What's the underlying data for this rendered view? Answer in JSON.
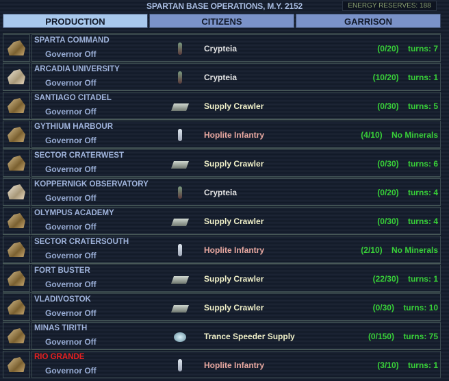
{
  "header": {
    "title": "SPARTAN BASE OPERATIONS,  M.Y. 2152",
    "energy": "ENERGY RESERVES: 188"
  },
  "tabs": [
    {
      "label": "PRODUCTION",
      "active": true
    },
    {
      "label": "CITIZENS"
    },
    {
      "label": "GARRISON"
    }
  ],
  "bases": [
    {
      "name": "SPARTA COMMAND",
      "governor": "Governor Off",
      "unit_icon": "foot-soldier",
      "item": "Crypteia",
      "item_class": "crypteia",
      "progress": "(0/20)",
      "status": "turns: 7"
    },
    {
      "name": "ARCADIA UNIVERSITY",
      "governor": "Governor Off",
      "unit_icon": "foot-soldier",
      "item": "Crypteia",
      "item_class": "crypteia",
      "progress": "(10/20)",
      "status": "turns: 1",
      "base_icon": "science"
    },
    {
      "name": "SANTIAGO CITADEL",
      "governor": "Governor Off",
      "unit_icon": "crawler",
      "item": "Supply Crawler",
      "item_class": "crawler",
      "progress": "(0/30)",
      "status": "turns: 5"
    },
    {
      "name": "GYTHIUM HARBOUR",
      "governor": "Governor Off",
      "unit_icon": "infantry",
      "item": "Hoplite Infantry",
      "item_class": "hoplite",
      "progress": "(4/10)",
      "status": "No Minerals"
    },
    {
      "name": "SECTOR CRATERWEST",
      "governor": "Governor Off",
      "unit_icon": "crawler",
      "item": "Supply Crawler",
      "item_class": "crawler",
      "progress": "(0/30)",
      "status": "turns: 6"
    },
    {
      "name": "KOPPERNIGK OBSERVATORY",
      "governor": "Governor Off",
      "unit_icon": "foot-soldier",
      "item": "Crypteia",
      "item_class": "crypteia",
      "progress": "(0/20)",
      "status": "turns: 4",
      "base_icon": "science"
    },
    {
      "name": "OLYMPUS ACADEMY",
      "governor": "Governor Off",
      "unit_icon": "crawler",
      "item": "Supply Crawler",
      "item_class": "crawler",
      "progress": "(0/30)",
      "status": "turns: 4"
    },
    {
      "name": "SECTOR CRATERSOUTH",
      "governor": "Governor Off",
      "unit_icon": "infantry",
      "item": "Hoplite Infantry",
      "item_class": "hoplite",
      "progress": "(2/10)",
      "status": "No Minerals"
    },
    {
      "name": "FORT BUSTER",
      "governor": "Governor Off",
      "unit_icon": "crawler",
      "item": "Supply Crawler",
      "item_class": "crawler",
      "progress": "(22/30)",
      "status": "turns: 1"
    },
    {
      "name": "VLADIVOSTOK",
      "governor": "Governor Off",
      "unit_icon": "crawler",
      "item": "Supply Crawler",
      "item_class": "crawler",
      "progress": "(0/30)",
      "status": "turns: 10"
    },
    {
      "name": "MINAS TIRITH",
      "governor": "Governor Off",
      "unit_icon": "hover",
      "item": "Trance Speeder Supply",
      "item_class": "crawler",
      "progress": "(0/150)",
      "status": "turns: 75"
    },
    {
      "name": "RIO GRANDE",
      "governor": "Governor Off",
      "unit_icon": "infantry",
      "item": "Hoplite Infantry",
      "item_class": "hoplite",
      "progress": "(3/10)",
      "status": "turns: 1",
      "name_color": "#e82020"
    }
  ]
}
